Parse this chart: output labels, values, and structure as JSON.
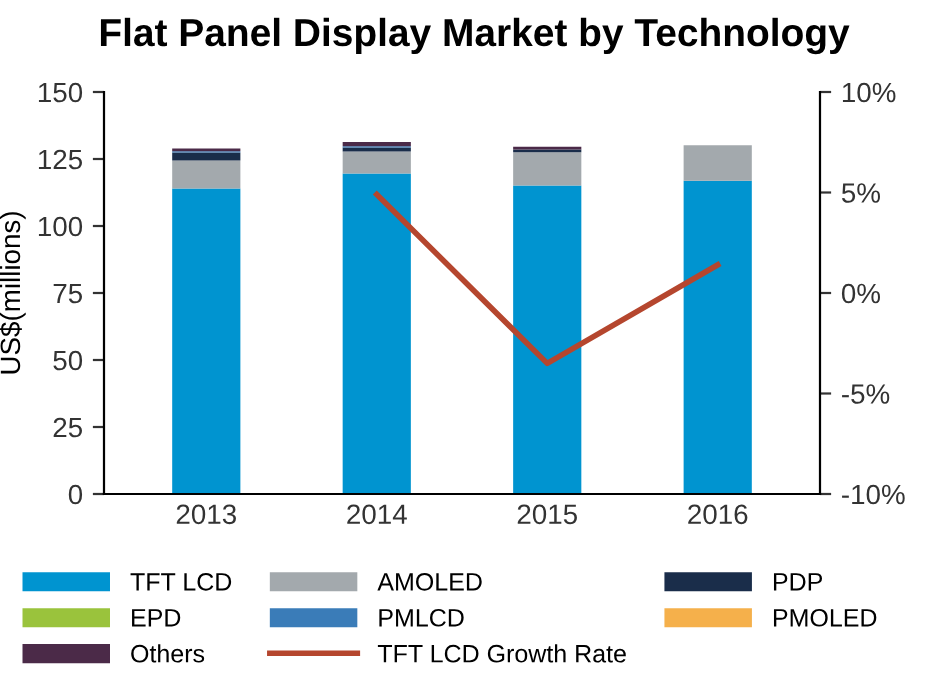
{
  "chart_data": {
    "type": "bar",
    "title": "Flat Panel Display Market by Technology",
    "ylabel": "US$(millions)",
    "categories": [
      "2013",
      "2014",
      "2015",
      "2016"
    ],
    "stacked": true,
    "series": [
      {
        "name": "TFT LCD",
        "color": "#0094d0",
        "values": [
          114,
          119.6,
          115.1,
          116.9
        ]
      },
      {
        "name": "AMOLED",
        "color": "#a3a9ad",
        "values": [
          10.4,
          8.2,
          12.4,
          13.2
        ]
      },
      {
        "name": "PDP",
        "color": "#1a2d4a",
        "values": [
          3,
          1.5,
          1,
          0
        ]
      },
      {
        "name": "EPD",
        "color": "#9ac33c",
        "values": [
          0,
          0,
          0,
          0
        ]
      },
      {
        "name": "PMLCD",
        "color": "#3a7cb8",
        "values": [
          0.5,
          0.5,
          0,
          0
        ]
      },
      {
        "name": "PMOLED",
        "color": "#f5b04b",
        "values": [
          0,
          0,
          0,
          0
        ]
      },
      {
        "name": "Others",
        "color": "#4b2a48",
        "values": [
          1,
          1.5,
          1.1,
          0
        ]
      },
      {
        "name": "TFT LCD Growth Rate",
        "type": "line",
        "axis": "y2",
        "color": "#b5462e",
        "values": [
          null,
          4.9,
          -3.5,
          1.4
        ]
      }
    ],
    "ylim": [
      0,
      150
    ],
    "yticks": [
      0,
      25,
      50,
      75,
      100,
      125,
      150
    ],
    "y2lim": [
      -10,
      10
    ],
    "y2ticks": [
      {
        "value": -10,
        "label": "-10%"
      },
      {
        "value": -5,
        "label": "-5%"
      },
      {
        "value": 0,
        "label": "0%"
      },
      {
        "value": 5,
        "label": "5%"
      },
      {
        "value": 10,
        "label": "10%"
      }
    ],
    "grid": false,
    "legend": "bottom"
  }
}
